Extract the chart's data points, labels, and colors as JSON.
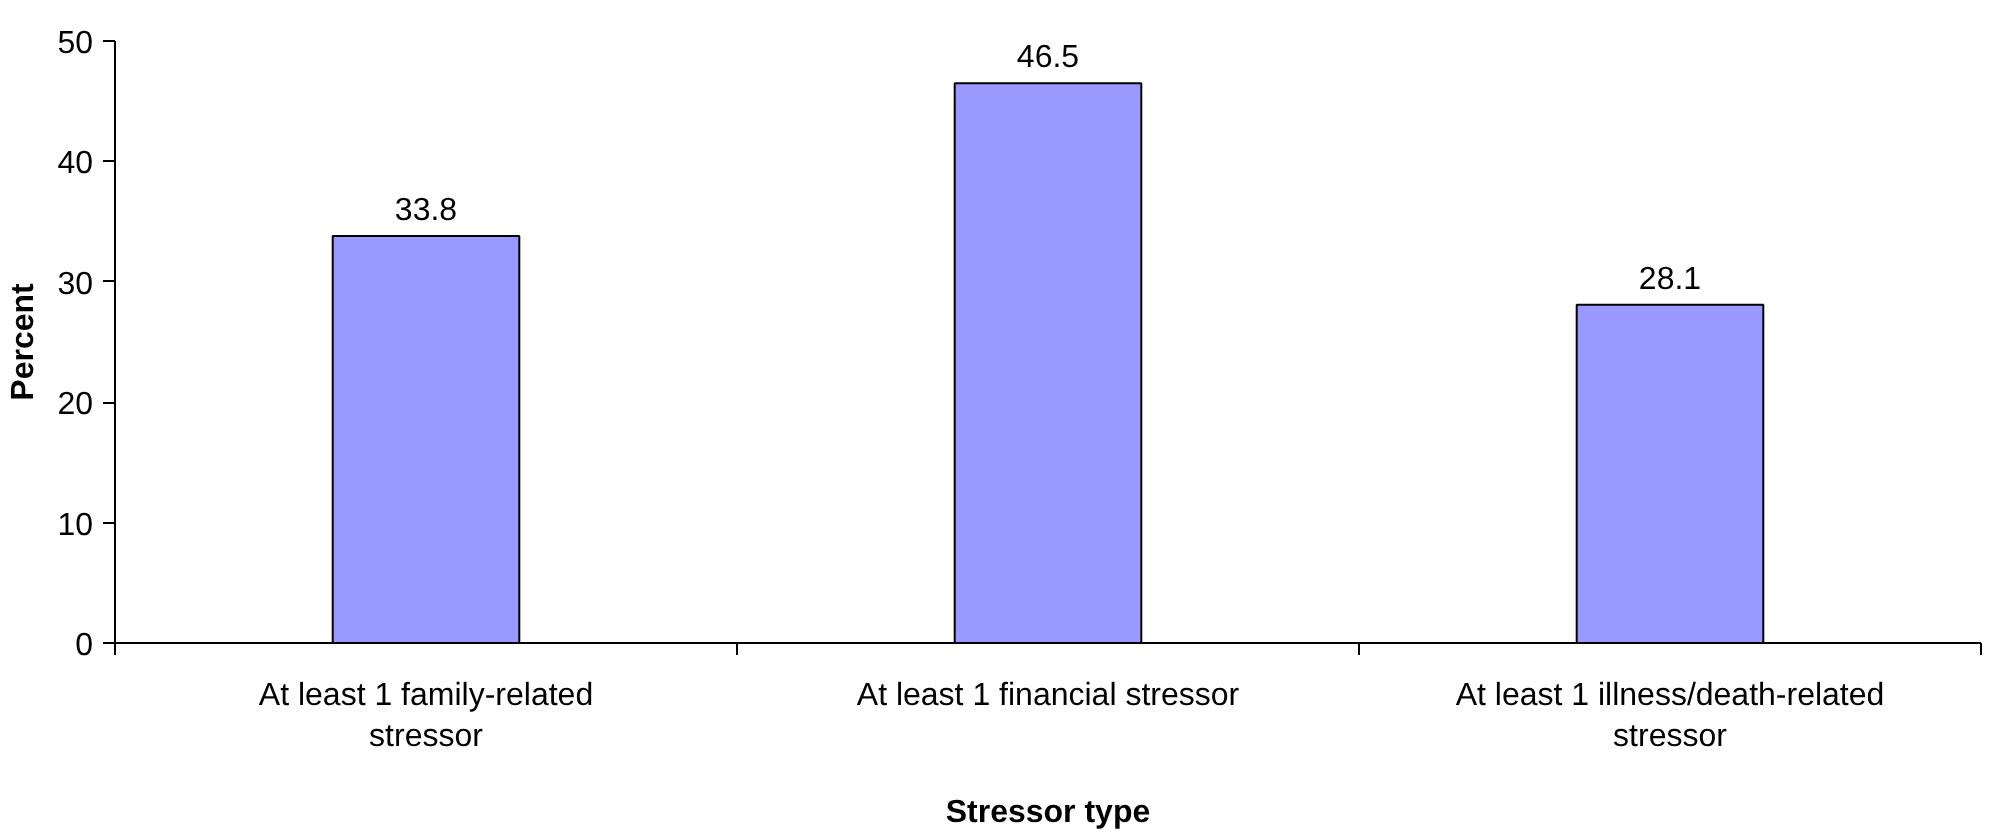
{
  "chart_data": {
    "type": "bar",
    "xlabel": "Stressor type",
    "ylabel": "Percent",
    "categories": [
      "At least 1 family-related stressor",
      "At least 1 financial stressor",
      "At least 1 illness/death-related stressor"
    ],
    "values": [
      33.8,
      46.5,
      28.1
    ],
    "color": "#9999ff",
    "ylim": [
      0,
      50
    ],
    "yticks": [
      0,
      10,
      20,
      30,
      40,
      50
    ],
    "grid": false,
    "data_labels": true
  }
}
